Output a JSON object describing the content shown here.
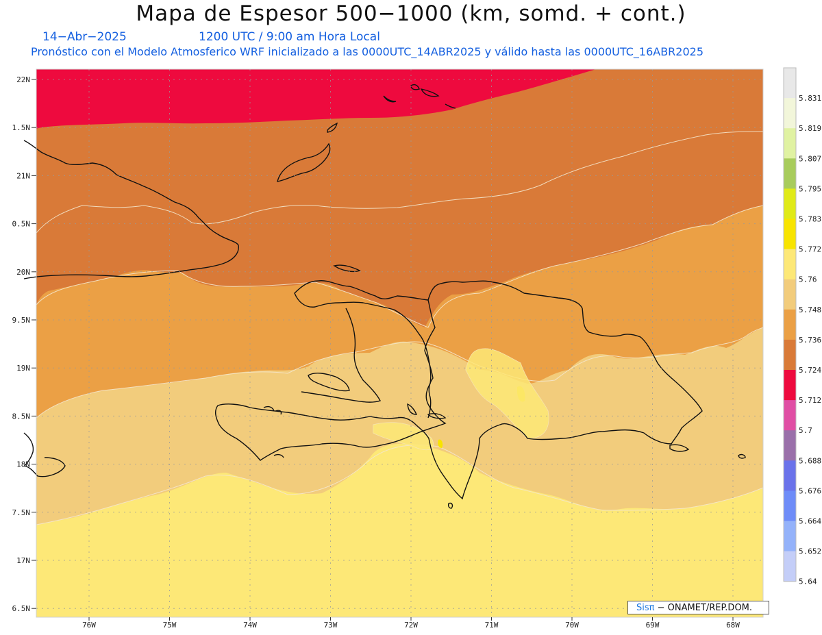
{
  "title": "Mapa de Espesor 500−1000 (km, somd. + cont.)",
  "date_label": "14−Abr−2025",
  "time_label": "1200 UTC / 9:00 am Hora Local",
  "model_label": "Pronóstico con el Modelo Atmosferico WRF inicializado a las 0000UTC_14ABR2025 y válido hasta las  0000UTC_16ABR2025",
  "lat_labels": [
    "22N",
    "1.5N",
    "21N",
    "0.5N",
    "20N",
    "9.5N",
    "19N",
    "8.5N",
    "18N",
    "7.5N",
    "17N",
    "6.5N"
  ],
  "lon_labels": [
    "76W",
    "75W",
    "74W",
    "73W",
    "72W",
    "71W",
    "70W",
    "69W",
    "68W"
  ],
  "colorbar": {
    "levels": [
      "5.831",
      "5.819",
      "5.807",
      "5.795",
      "5.783",
      "5.772",
      "5.76",
      "5.748",
      "5.736",
      "5.724",
      "5.712",
      "5.7",
      "5.688",
      "5.676",
      "5.664",
      "5.652",
      "5.64"
    ],
    "colors": [
      "#e8e8e8",
      "#f2f6da",
      "#e0f2a2",
      "#a8cc5c",
      "#e0ea18",
      "#f8e400",
      "#fde877",
      "#f2cc7c",
      "#eba045",
      "#d97a38",
      "#ee0a3e",
      "#e04ea4",
      "#9a70aa",
      "#6a72ea",
      "#6e8cf8",
      "#94b2fa",
      "#c4cef8"
    ]
  },
  "credit": {
    "logo": "Sisπ",
    "text": "− ONAMET/REP.DOM."
  }
}
